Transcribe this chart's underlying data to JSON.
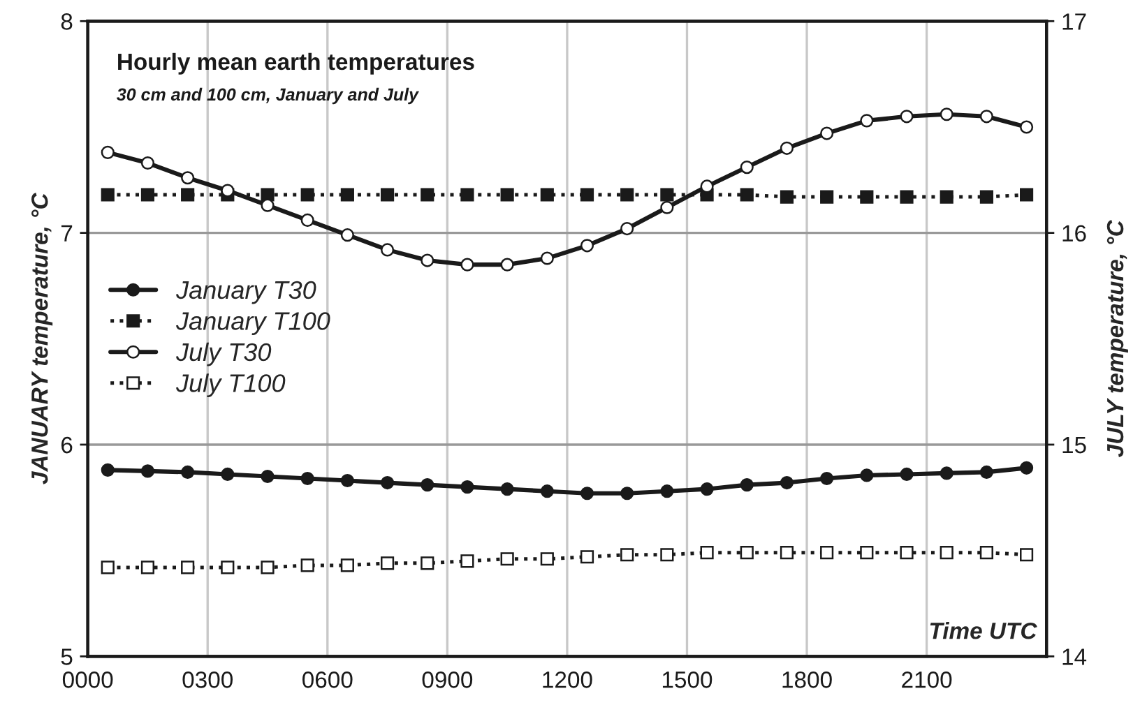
{
  "chart_data": {
    "type": "line",
    "title": "Hourly mean earth temperatures",
    "subtitle": "30 cm and 100 cm, January and July",
    "xlabel": "Time UTC",
    "ylabel": "JANUARY temperature, °C",
    "y2label": "JULY temperature, °C",
    "x": [
      50,
      150,
      250,
      350,
      450,
      550,
      650,
      750,
      850,
      950,
      1050,
      1150,
      1250,
      1350,
      1450,
      1550,
      1650,
      1750,
      1850,
      1950,
      2050,
      2150,
      2250,
      2350
    ],
    "series": [
      {
        "name": "January T30",
        "color": "#1a1a1a",
        "marker": "circle",
        "line_style": "solid",
        "values": [
          5.88,
          5.875,
          5.87,
          5.86,
          5.85,
          5.84,
          5.83,
          5.82,
          5.81,
          5.8,
          5.79,
          5.78,
          5.77,
          5.77,
          5.78,
          5.79,
          5.81,
          5.82,
          5.84,
          5.855,
          5.86,
          5.865,
          5.87,
          5.89
        ]
      },
      {
        "name": "January T100",
        "color": "#1a1a1a",
        "marker": "square",
        "line_style": "dotted",
        "values": [
          7.18,
          7.18,
          7.18,
          7.18,
          7.18,
          7.18,
          7.18,
          7.18,
          7.18,
          7.18,
          7.18,
          7.18,
          7.18,
          7.18,
          7.18,
          7.18,
          7.18,
          7.17,
          7.17,
          7.17,
          7.17,
          7.17,
          7.17,
          7.18
        ]
      },
      {
        "name": "July T30",
        "color": "#1a1a1a",
        "marker": "circle",
        "line_style": "solid",
        "axis": "y2",
        "values": [
          16.38,
          16.33,
          16.26,
          16.2,
          16.13,
          16.06,
          15.99,
          15.92,
          15.87,
          15.85,
          15.85,
          15.88,
          15.94,
          16.02,
          16.12,
          16.22,
          16.31,
          16.4,
          16.47,
          16.53,
          16.55,
          16.56,
          16.55,
          16.5
        ]
      },
      {
        "name": "July T100",
        "color": "#1a1a1a",
        "marker": "square",
        "line_style": "dotted",
        "axis": "y2",
        "values": [
          14.42,
          14.42,
          14.42,
          14.42,
          14.42,
          14.43,
          14.43,
          14.44,
          14.44,
          14.45,
          14.46,
          14.46,
          14.47,
          14.48,
          14.48,
          14.49,
          14.49,
          14.49,
          14.49,
          14.49,
          14.49,
          14.49,
          14.49,
          14.48
        ]
      }
    ],
    "xlim": [
      0,
      2400
    ],
    "xticks": [
      {
        "value": 0,
        "label": "0000"
      },
      {
        "value": 300,
        "label": "0300"
      },
      {
        "value": 600,
        "label": "0600"
      },
      {
        "value": 900,
        "label": "0900"
      },
      {
        "value": 1200,
        "label": "1200"
      },
      {
        "value": 1500,
        "label": "1500"
      },
      {
        "value": 1800,
        "label": "1800"
      },
      {
        "value": 2100,
        "label": "2100"
      },
      {
        "value": 2400,
        "label": null
      }
    ],
    "ylim": [
      5,
      8
    ],
    "yticks": [
      5,
      6,
      7,
      8
    ],
    "y2lim": [
      14,
      17
    ],
    "y2ticks": [
      14,
      15,
      16,
      17
    ],
    "grid": true,
    "legend": "center left"
  }
}
